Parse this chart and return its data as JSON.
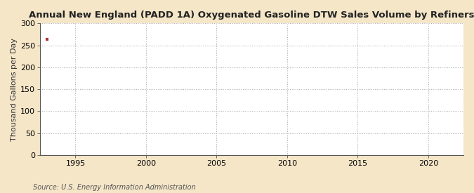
{
  "title": "Annual New England (PADD 1A) Oxygenated Gasoline DTW Sales Volume by Refiners",
  "ylabel": "Thousand Gallons per Day",
  "source": "Source: U.S. Energy Information Administration",
  "figure_bg": "#f5e6c8",
  "plot_bg": "#ffffff",
  "data_x": [
    1993
  ],
  "data_y": [
    263
  ],
  "marker_color": "#b03030",
  "marker_size": 3.5,
  "xlim": [
    1992.5,
    2022.5
  ],
  "ylim": [
    0,
    300
  ],
  "yticks": [
    0,
    50,
    100,
    150,
    200,
    250,
    300
  ],
  "xticks": [
    1995,
    2000,
    2005,
    2010,
    2015,
    2020
  ],
  "grid_color": "#aaaaaa",
  "grid_linestyle": ":",
  "title_fontsize": 9.5,
  "ylabel_fontsize": 8,
  "tick_fontsize": 8,
  "source_fontsize": 7
}
